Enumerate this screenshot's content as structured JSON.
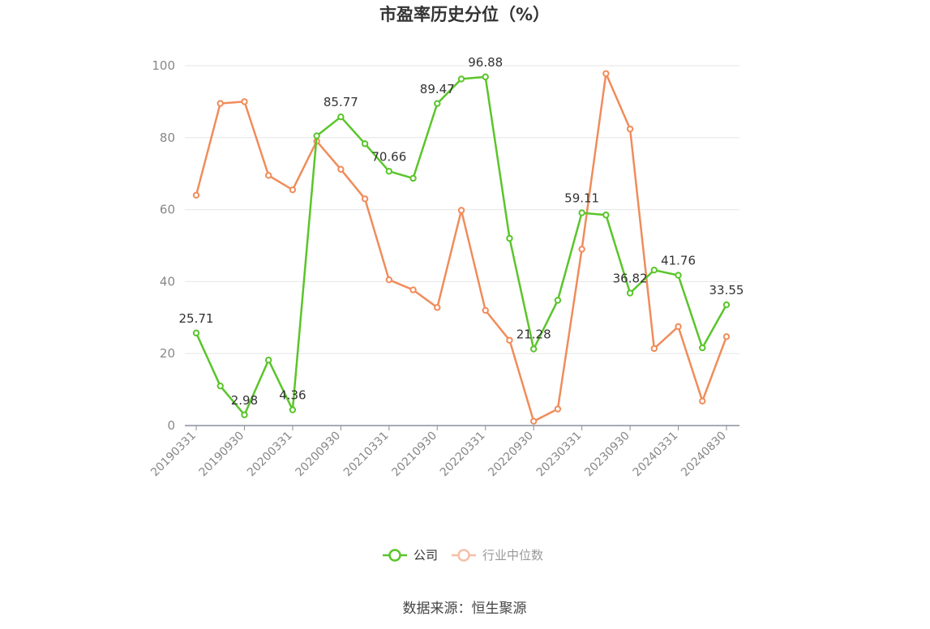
{
  "chart_data": {
    "type": "line",
    "title": "市盈率历史分位（%）",
    "xlabel": "",
    "ylabel": "",
    "ylim": [
      0,
      100
    ],
    "yticks": [
      0,
      20,
      40,
      60,
      80,
      100
    ],
    "grid": true,
    "legend_position": "bottom-center",
    "x": [
      "20190331",
      "20190630",
      "20190930",
      "20191231",
      "20200331",
      "20200630",
      "20200930",
      "20201231",
      "20210331",
      "20210630",
      "20210930",
      "20211231",
      "20220331",
      "20220630",
      "20220930",
      "20221231",
      "20230331",
      "20230630",
      "20230930",
      "20231231",
      "20240331",
      "20240630",
      "20240830"
    ],
    "x_tick_labels": [
      "20190331",
      "20190930",
      "20200331",
      "20200930",
      "20210331",
      "20210930",
      "20220331",
      "20220930",
      "20230331",
      "20230930",
      "20240331",
      "20240830"
    ],
    "series": [
      {
        "name": "公司",
        "color": "#5ac52a",
        "values": [
          25.71,
          11.0,
          2.98,
          18.2,
          4.36,
          80.5,
          85.77,
          78.3,
          70.66,
          68.7,
          89.47,
          96.3,
          96.88,
          52.0,
          21.28,
          34.8,
          59.11,
          58.5,
          36.82,
          43.2,
          41.76,
          21.6,
          33.55
        ],
        "data_labels": [
          {
            "index": 0,
            "text": "25.71"
          },
          {
            "index": 2,
            "text": "2.98"
          },
          {
            "index": 4,
            "text": "4.36"
          },
          {
            "index": 6,
            "text": "85.77"
          },
          {
            "index": 8,
            "text": "70.66"
          },
          {
            "index": 10,
            "text": "89.47"
          },
          {
            "index": 12,
            "text": "96.88"
          },
          {
            "index": 14,
            "text": "21.28"
          },
          {
            "index": 16,
            "text": "59.11"
          },
          {
            "index": 18,
            "text": "36.82"
          },
          {
            "index": 20,
            "text": "41.76"
          },
          {
            "index": 22,
            "text": "33.55"
          }
        ]
      },
      {
        "name": "行业中位数",
        "color": "#f08c5a",
        "values": [
          64.0,
          89.5,
          90.0,
          69.5,
          65.5,
          79.0,
          71.2,
          63.0,
          40.5,
          37.7,
          32.8,
          59.8,
          32.0,
          23.7,
          1.2,
          4.6,
          49.0,
          97.8,
          82.4,
          21.4,
          27.5,
          6.8,
          24.7
        ]
      }
    ]
  },
  "source_text": "数据来源：恒生聚源"
}
